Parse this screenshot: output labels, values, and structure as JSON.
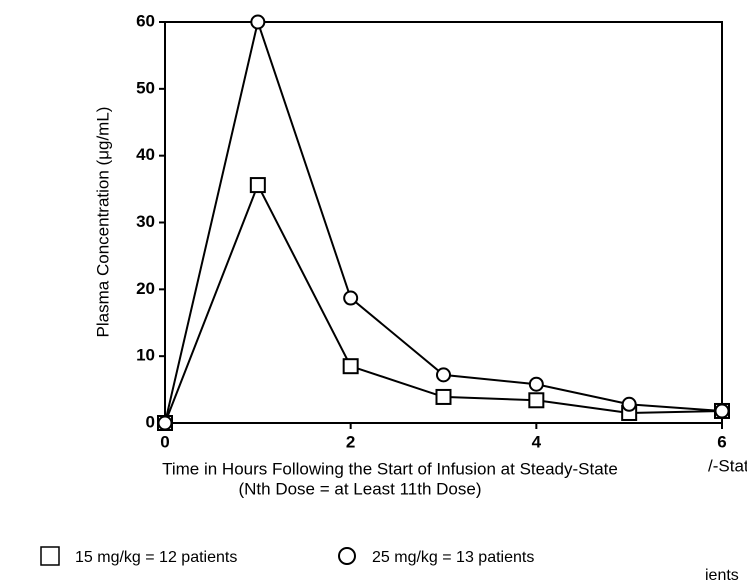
{
  "chart_data": {
    "type": "line",
    "ylabel": "Plasma Concentration (μg/mL)",
    "xlabel": "Time in Hours Following the Start of Infusion at Steady-State",
    "xlabel2": "(Nth Dose = at Least 11th Dose)",
    "annotations": [
      "/-State",
      "ients"
    ],
    "x": [
      0,
      1,
      2,
      3,
      4,
      5,
      6
    ],
    "series": [
      {
        "name": "15 mg/kg = 12 patients",
        "marker": "square",
        "color": "#000000",
        "values": [
          0,
          35.6,
          8.5,
          3.9,
          3.4,
          1.5,
          1.8
        ]
      },
      {
        "name": "25 mg/kg = 13 patients",
        "marker": "circle",
        "color": "#000000",
        "values": [
          0,
          60,
          18.7,
          7.2,
          5.8,
          2.8,
          1.8
        ]
      }
    ],
    "xlim": [
      0,
      6
    ],
    "xticks": [
      0,
      2,
      4,
      6
    ],
    "ylim": [
      0,
      60
    ],
    "yticks": [
      0,
      10,
      20,
      30,
      40,
      50,
      60
    ]
  }
}
